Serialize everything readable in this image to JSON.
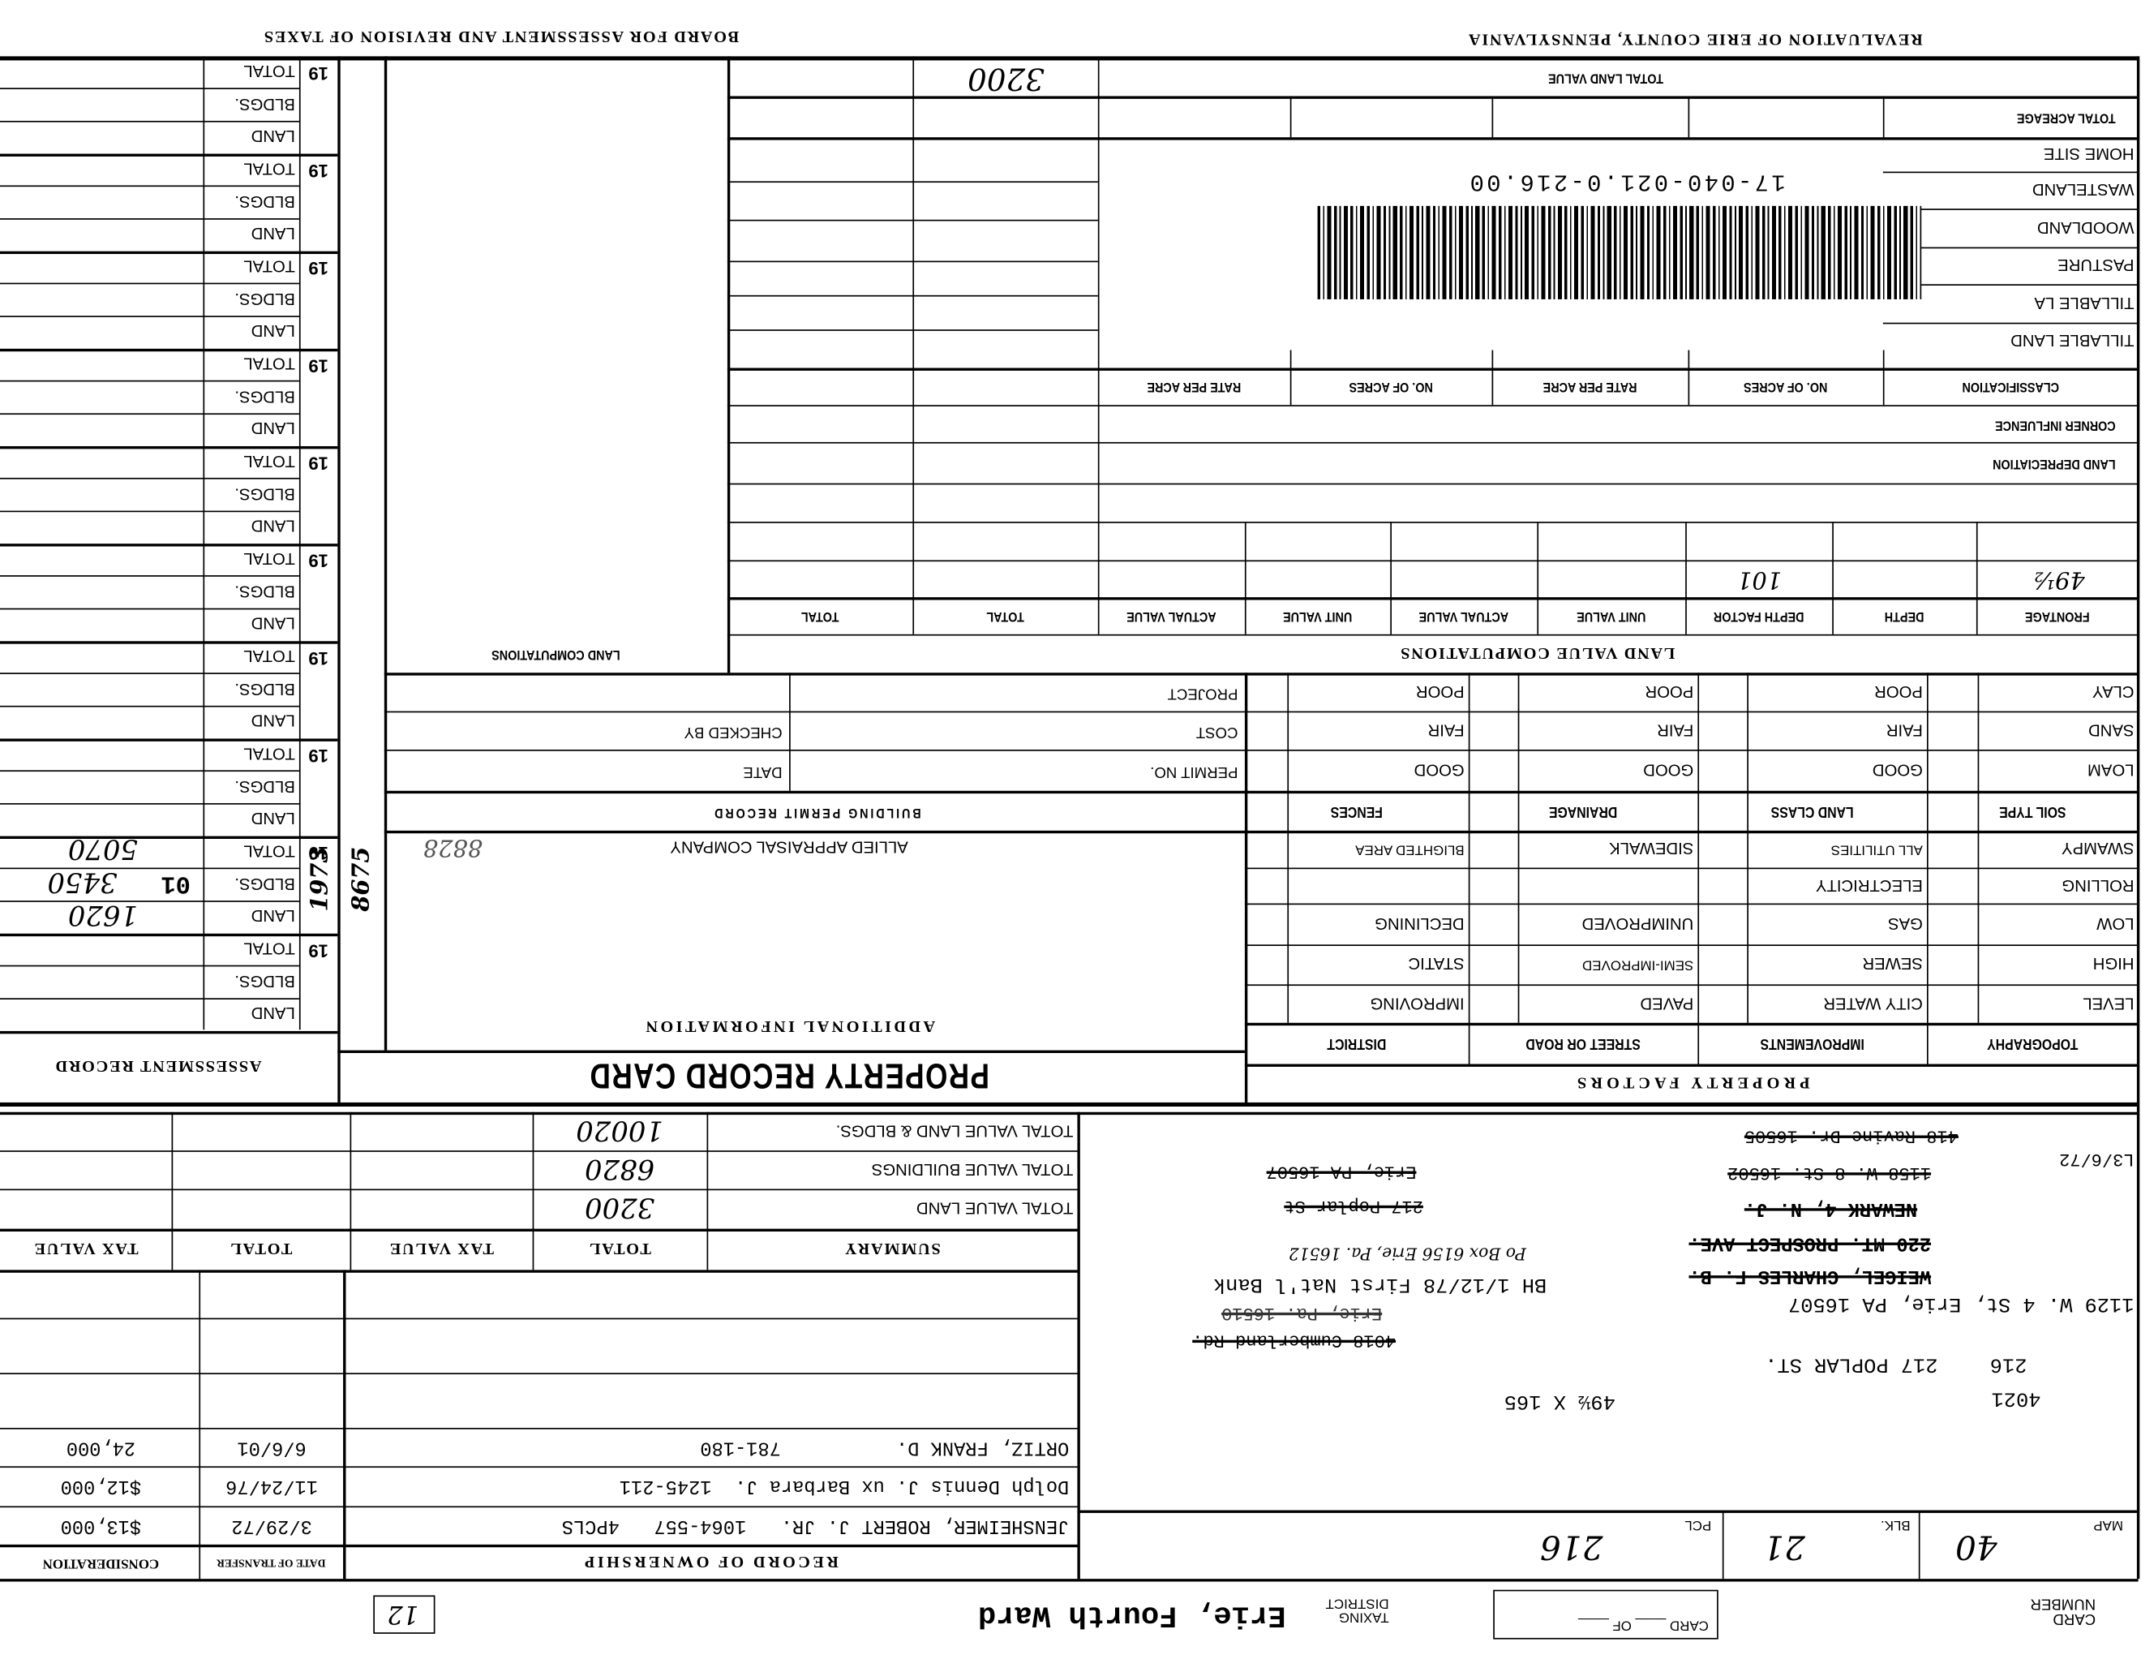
{
  "header": {
    "right_title": "REVALUATION OF ERIE COUNTY, PENNSYLVANIA",
    "left_title": "BOARD FOR ASSESSMENT AND REVISION OF TAXES"
  },
  "assessment_record": {
    "title": "ASSESSMENT RECORD",
    "year_prefix": "19",
    "row_labels": [
      "TOTAL",
      "BLDGS.",
      "LAND"
    ],
    "entry": {
      "year": "1973",
      "code": "8675",
      "mark": "01",
      "land": "1620",
      "bldgs": "3450",
      "total": "5070"
    }
  },
  "land_computations_title": "LAND COMPUTATIONS",
  "land": {
    "total_land_value_label": "TOTAL LAND VALUE",
    "total_land_value": "3200",
    "total_acreage_label": "TOTAL ACREAGE",
    "classifications": [
      "HOME SITE",
      "WASTELAND",
      "WOODLAND",
      "PASTURE",
      "TILLABLE LA",
      "TILLABLE LAND"
    ],
    "parcel_id": "17-040-021.0-216.00",
    "acre_headers": [
      "CLASSIFICATION",
      "NO. OF ACRES",
      "RATE PER ACRE",
      "NO. OF ACRES",
      "RATE PER ACRE"
    ],
    "corner_influence": "CORNER INFLUENCE",
    "land_depreciation": "LAND DEPRECIATION",
    "computation_headers": [
      "FRONTAGE",
      "DEPTH",
      "DEPTH FACTOR",
      "UNIT VALUE",
      "ACTUAL VALUE",
      "UNIT VALUE",
      "ACTUAL VALUE",
      "TOTAL",
      "TOTAL"
    ],
    "computation_title": "LAND VALUE COMPUTATIONS",
    "frontage_value": "49½",
    "depth_factor_value": "101"
  },
  "soil": {
    "rows": [
      [
        "CLAY",
        "POOR",
        "POOR",
        "POOR"
      ],
      [
        "SAND",
        "FAIR",
        "FAIR",
        "FAIR"
      ],
      [
        "LOAM",
        "GOOD",
        "GOOD",
        "GOOD"
      ]
    ],
    "headers": [
      "SOIL TYPE",
      "LAND CLASS",
      "DRAINAGE",
      "FENCES"
    ]
  },
  "building_permit": {
    "title": "BUILDING PERMIT RECORD",
    "project": "PROJECT",
    "cost": "COST",
    "checked_by": "CHECKED BY",
    "permit_no": "PERMIT NO.",
    "date": "DATE"
  },
  "topography": {
    "rows": [
      [
        "SWAMPY",
        "ALL UTILITIES",
        "SIDEWALK",
        "BLIGHTED AREA"
      ],
      [
        "ROLLING",
        "ELECTRICITY",
        "",
        ""
      ],
      [
        "LOW",
        "GAS",
        "UNIMPROVED",
        "DECLINING"
      ],
      [
        "HIGH",
        "SEWER",
        "SEMI-IMPROVED",
        "STATIC"
      ],
      [
        "LEVEL",
        "CITY WATER",
        "PAVED",
        "IMPROVING"
      ]
    ],
    "headers": [
      "TOPOGRAPHY",
      "IMPROVEMENTS",
      "STREET OR ROAD",
      "DISTRICT"
    ],
    "title": "PROPERTY FACTORS"
  },
  "additional_info": {
    "company": "ALLIED APPRAISAL COMPANY",
    "title": "ADDITIONAL INFORMATION",
    "note": "8828"
  },
  "card_title": "PROPERTY RECORD CARD",
  "summary": {
    "headers": [
      "SUMMARY",
      "TOTAL",
      "TAX VALUE",
      "TOTAL",
      "TAX VALUE"
    ],
    "rows": [
      {
        "label": "TOTAL VALUE LAND",
        "total": "3200"
      },
      {
        "label": "TOTAL VALUE BUILDINGS",
        "total": "6820"
      },
      {
        "label": "TOTAL VALUE LAND & BLDGS.",
        "total": "10020"
      }
    ]
  },
  "ownership": {
    "title": "RECORD OF OWNERSHIP",
    "date_header": "DATE OF TRANSFER",
    "consideration_header": "CONSIDERATION",
    "rows": [
      {
        "name": "JENSHEIMER, ROBERT J. JR.   1064-557   4PCLS",
        "date": "3/29/72",
        "consideration": "$13,000"
      },
      {
        "name": "Dolph Dennis J. ux Barbara J.  1245-211",
        "date": "11/24/76",
        "consideration": "$12,000"
      },
      {
        "name": "ORTIZ, FRANK D.          781-180",
        "date": "6/6/01",
        "consideration": "24,000"
      }
    ]
  },
  "address": {
    "lot_no": "4021",
    "parcel": "216",
    "street": "217 POPLAR ST.",
    "dimensions": "49½ X 165",
    "current_address": "1129 W. 4 St, Erie, PA 16507",
    "prior_owner": "WEIGEL, CHARLES F. B.",
    "prior_street": "220 MT. PROSPECT AVE.",
    "prior_city": "NEWARK 4, N. J.",
    "date_note": "L3/6/72",
    "old_addr_1": "1158 W. 8 St. 16502",
    "old_addr_2": "418 Ravine Dr. 16505",
    "bank_line": "BH 1/12/78 First Nat'l Bank",
    "po_box": "Po Box 6156 Erie, Pa. 16512",
    "old_addr_3": "Erie, Pa. 16510",
    "old_addr_4": "4018 Cumberland Rd.",
    "old_addr_5": "217 Poplar St",
    "old_addr_6": "Erie, PA 16507"
  },
  "ids": {
    "map_label": "MAP",
    "map": "40",
    "blk_label": "BLK.",
    "blk": "21",
    "pcl_label": "PCL",
    "pcl": "216"
  },
  "footer": {
    "card_number_label": "CARD NUMBER",
    "card_of": "CARD ____ OF ____",
    "taxing_district_label": "TAXING DISTRICT",
    "taxing_district": "Erie, Fourth Ward",
    "ward_box": "12"
  }
}
